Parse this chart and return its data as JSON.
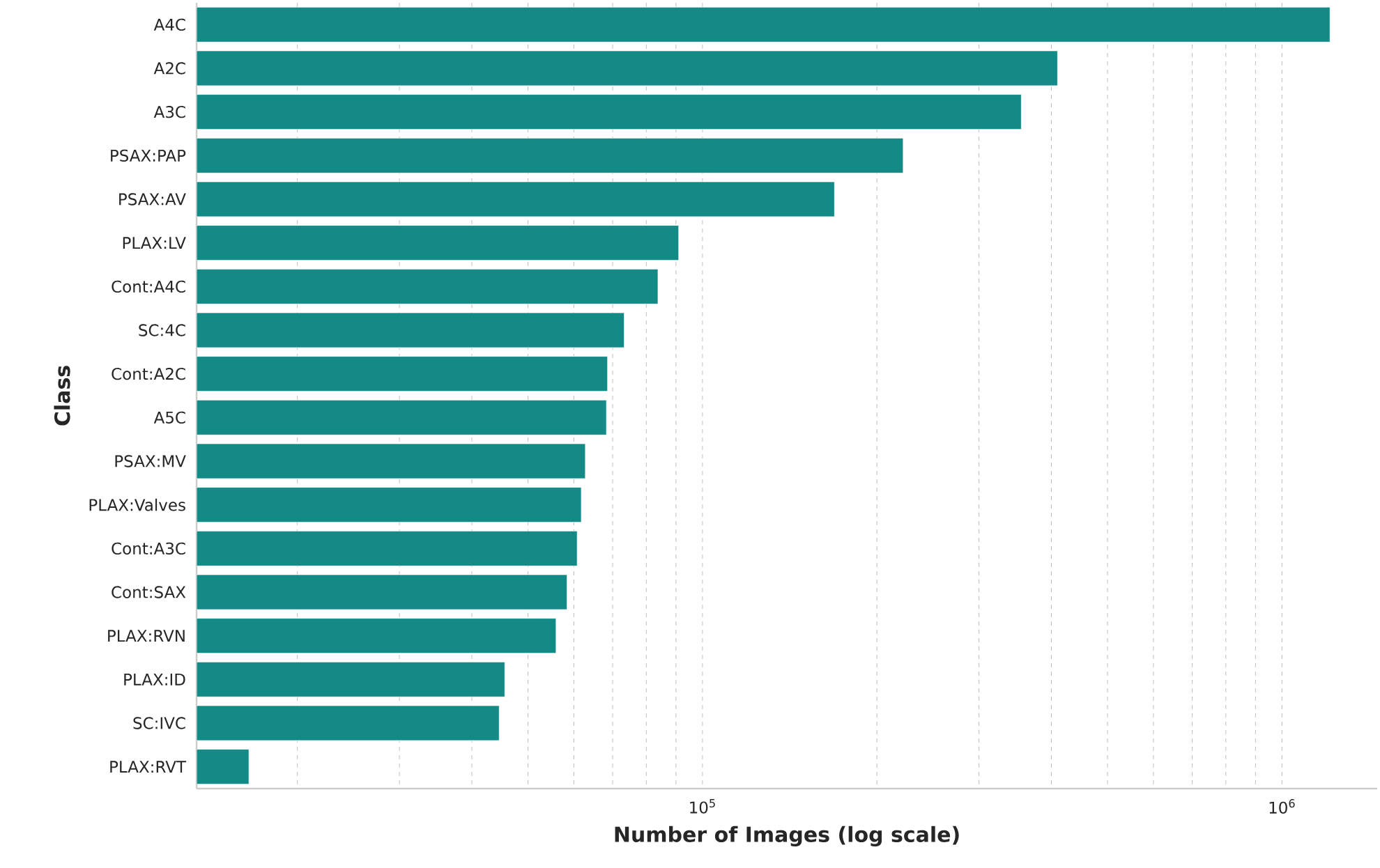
{
  "chart_data": {
    "type": "bar",
    "orientation": "horizontal",
    "xlabel": "Number of Images (log scale)",
    "ylabel": "Class",
    "categories": [
      "A4C",
      "A2C",
      "A3C",
      "PSAX:PAP",
      "PSAX:AV",
      "PLAX:LV",
      "Cont:A4C",
      "SC:4C",
      "Cont:A2C",
      "A5C",
      "PSAX:MV",
      "PLAX:Valves",
      "Cont:A3C",
      "Cont:SAX",
      "PLAX:RVN",
      "PLAX:ID",
      "SC:IVC",
      "PLAX:RVT"
    ],
    "values": [
      1210000,
      410000,
      355000,
      222000,
      169000,
      91000,
      83800,
      73300,
      68600,
      68300,
      62800,
      61800,
      60800,
      58400,
      55900,
      45600,
      44600,
      16500
    ],
    "color": "#148a86",
    "log": "x",
    "xlim": [
      13400,
      1460000
    ],
    "xticks": [
      {
        "value": 20000,
        "label": null
      },
      {
        "value": 30000,
        "label": null
      },
      {
        "value": 40000,
        "label": null
      },
      {
        "value": 50000,
        "label": null
      },
      {
        "value": 60000,
        "label": null
      },
      {
        "value": 70000,
        "label": null
      },
      {
        "value": 80000,
        "label": null
      },
      {
        "value": 90000,
        "label": null
      },
      {
        "value": 100000,
        "label": "10$^{5}$"
      },
      {
        "value": 200000,
        "label": null
      },
      {
        "value": 300000,
        "label": null
      },
      {
        "value": 400000,
        "label": null
      },
      {
        "value": 500000,
        "label": null
      },
      {
        "value": 600000,
        "label": null
      },
      {
        "value": 700000,
        "label": null
      },
      {
        "value": 800000,
        "label": null
      },
      {
        "value": 900000,
        "label": null
      },
      {
        "value": 1000000,
        "label": "10$^{6}$"
      }
    ],
    "grid": "x"
  }
}
